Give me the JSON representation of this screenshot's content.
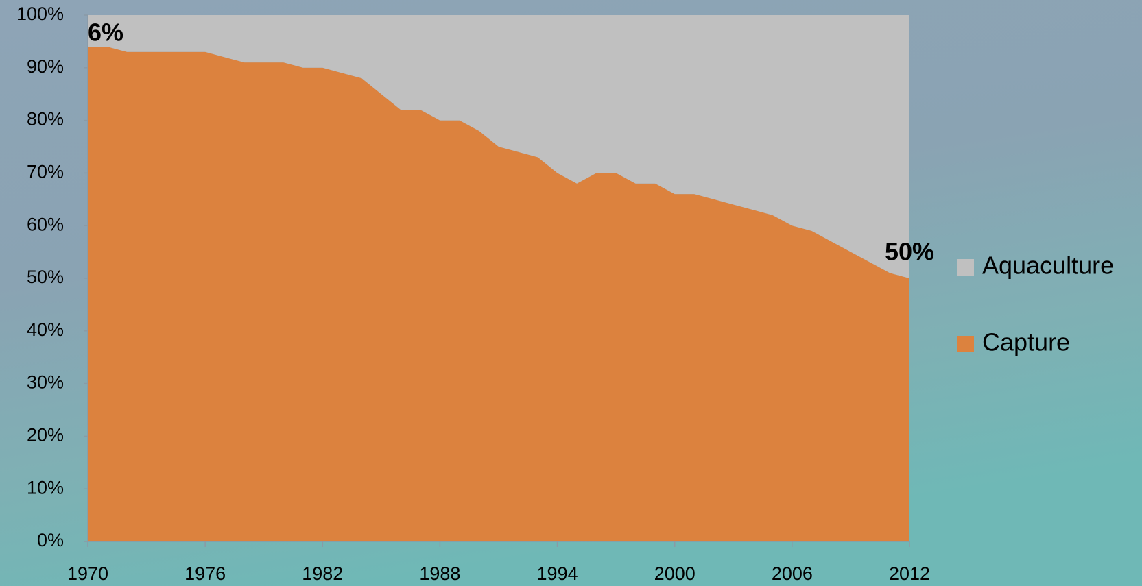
{
  "chart_data": {
    "type": "stacked-area",
    "x": [
      1970,
      1971,
      1972,
      1973,
      1974,
      1975,
      1976,
      1977,
      1978,
      1979,
      1980,
      1981,
      1982,
      1983,
      1984,
      1985,
      1986,
      1987,
      1988,
      1989,
      1990,
      1991,
      1992,
      1993,
      1994,
      1995,
      1996,
      1997,
      1998,
      1999,
      2000,
      2001,
      2002,
      2003,
      2004,
      2005,
      2006,
      2007,
      2008,
      2009,
      2010,
      2011,
      2012
    ],
    "series": [
      {
        "name": "Capture",
        "color": "#dc823e",
        "values": [
          94,
          94,
          93,
          93,
          93,
          93,
          93,
          92,
          91,
          91,
          91,
          90,
          90,
          89,
          88,
          85,
          82,
          82,
          80,
          80,
          78,
          75,
          74,
          73,
          70,
          68,
          70,
          70,
          68,
          68,
          66,
          66,
          65,
          64,
          63,
          62,
          60,
          59,
          57,
          55,
          53,
          51,
          50
        ]
      },
      {
        "name": "Aquaculture",
        "color": "#c0c0c0",
        "values": [
          6,
          6,
          7,
          7,
          7,
          7,
          7,
          8,
          9,
          9,
          9,
          10,
          10,
          11,
          12,
          15,
          18,
          18,
          20,
          20,
          22,
          25,
          26,
          27,
          30,
          32,
          30,
          30,
          32,
          32,
          34,
          34,
          35,
          36,
          37,
          38,
          40,
          41,
          43,
          45,
          47,
          49,
          50
        ],
        "value_labels": [
          "6%",
          null,
          null,
          null,
          null,
          null,
          null,
          null,
          null,
          null,
          null,
          null,
          null,
          null,
          null,
          null,
          null,
          null,
          null,
          null,
          null,
          null,
          null,
          null,
          null,
          null,
          null,
          null,
          null,
          null,
          null,
          null,
          null,
          null,
          null,
          null,
          null,
          null,
          null,
          null,
          null,
          null,
          "50%"
        ]
      }
    ],
    "xlim": [
      1970,
      2012
    ],
    "xticks": [
      1970,
      1976,
      1982,
      1988,
      1994,
      2000,
      2006,
      2012
    ],
    "ylim": [
      0,
      100
    ],
    "yticks": [
      {
        "value": 0,
        "label": "0%"
      },
      {
        "value": 10,
        "label": "10%"
      },
      {
        "value": 20,
        "label": "20%"
      },
      {
        "value": 30,
        "label": "30%"
      },
      {
        "value": 40,
        "label": "40%"
      },
      {
        "value": 50,
        "label": "50%"
      },
      {
        "value": 60,
        "label": "60%"
      },
      {
        "value": 70,
        "label": "70%"
      },
      {
        "value": 80,
        "label": "80%"
      },
      {
        "value": 90,
        "label": "90%"
      },
      {
        "value": 100,
        "label": "100%"
      }
    ],
    "legend": "right"
  }
}
